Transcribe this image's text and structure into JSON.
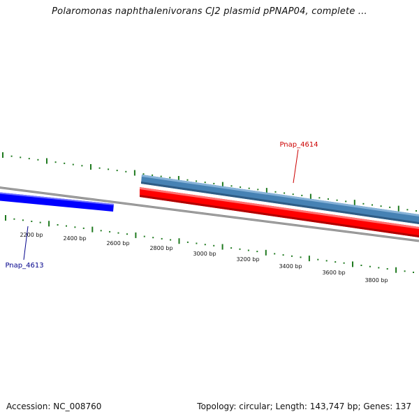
{
  "title": "Polaromonas naphthalenivorans CJ2 plasmid pPNAP04, complete ...",
  "footer": {
    "accession": "Accession: NC_008760",
    "summary": "Topology: circular; Length: 143,747 bp; Genes: 137"
  },
  "colors": {
    "backbone": "#7a7a7a",
    "tick": "#1f7a1f",
    "gene_blue": "#0000ff",
    "gene_steel": "#4682b4",
    "gene_red": "#ff0000",
    "label_red": "#cc0000",
    "label_blue": "#00008b"
  },
  "ruler": {
    "labels": [
      "2200 bp",
      "2400 bp",
      "2600 bp",
      "2800 bp",
      "3000 bp",
      "3200 bp",
      "3400 bp",
      "3600 bp",
      "3800 bp"
    ]
  },
  "genes": [
    {
      "name": "Pnap_4613",
      "color": "#0000ff",
      "label_color": "#00008b"
    },
    {
      "name": "Pnap_4614",
      "color": "#ff0000",
      "label_color": "#cc0000"
    },
    {
      "name": "",
      "color": "#4682b4"
    }
  ]
}
